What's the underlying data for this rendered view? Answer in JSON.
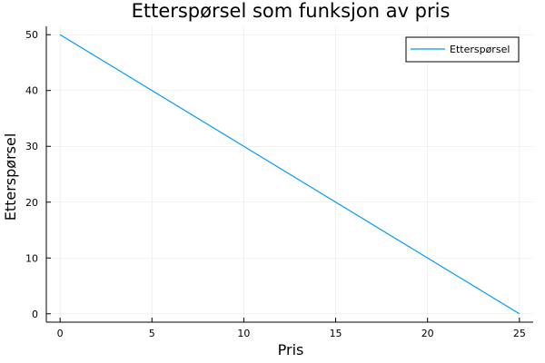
{
  "chart_data": {
    "type": "line",
    "title": "Etterspørsel som funksjon av pris",
    "xlabel": "Pris",
    "ylabel": "Etterspørsel",
    "xlim": [
      -0.75,
      25.75
    ],
    "ylim": [
      -1.5,
      51.5
    ],
    "xticks": [
      0,
      5,
      10,
      15,
      20,
      25
    ],
    "yticks": [
      0,
      10,
      20,
      30,
      40,
      50
    ],
    "grid": true,
    "legend_position": "top-right",
    "series": [
      {
        "name": "Etterspørsel",
        "color": "#009AFA",
        "x": [
          0,
          5,
          10,
          15,
          20,
          25
        ],
        "y": [
          50,
          40,
          30,
          20,
          10,
          0
        ]
      }
    ]
  }
}
